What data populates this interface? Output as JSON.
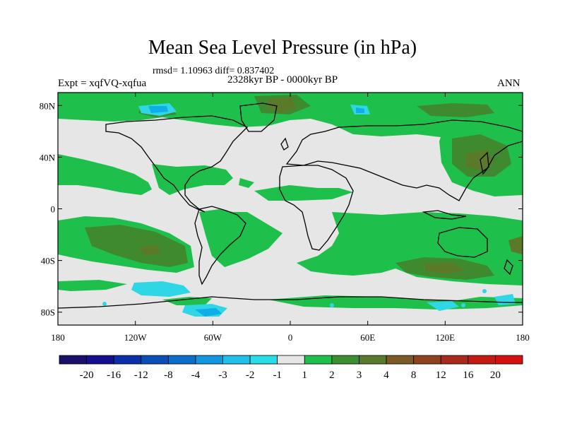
{
  "title": "Mean Sea Level Pressure (in hPa)",
  "stats_line": "rmsd= 1.10963 diff= 0.837402",
  "period": "2328kyr BP - 0000kyr BP",
  "experiment": "Expt = xqfVQ-xqfua",
  "season": "ANN",
  "map": {
    "lat_ticks": [
      "80N",
      "40N",
      "0",
      "40S",
      "80S"
    ],
    "lon_ticks": [
      "180",
      "120W",
      "60W",
      "0",
      "60E",
      "120E",
      "180"
    ],
    "colors": {
      "ocean_neutral": "#e6e6e6",
      "pos_1_2": "#1fbf4c",
      "pos_2_3": "#3f8a2f",
      "pos_3_4": "#5a7a2a",
      "neg_1_2": "#2fd6e6",
      "neg_2_3": "#10aee6",
      "neg_3_4": "#1077c9",
      "coast": "#000000"
    }
  },
  "colorbar": {
    "labels": [
      "-20",
      "-16",
      "-12",
      "-8",
      "-4",
      "-3",
      "-2",
      "-1",
      "1",
      "2",
      "3",
      "4",
      "8",
      "12",
      "16",
      "20"
    ],
    "colors": [
      "#1a0f6b",
      "#150f8f",
      "#0b2fa8",
      "#0a4fb6",
      "#0b6fc9",
      "#1196df",
      "#22bfe8",
      "#28dde8",
      "#e6e6e6",
      "#1fbf4c",
      "#3b8f2e",
      "#587a2c",
      "#7a5a26",
      "#8f4220",
      "#a82a1a",
      "#c41a12",
      "#d61010"
    ]
  }
}
